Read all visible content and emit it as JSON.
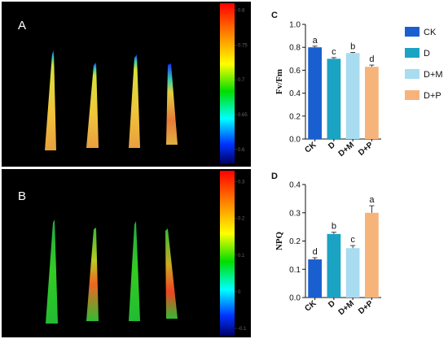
{
  "image_panels": [
    {
      "label": "A",
      "colorbar_ticks": [
        "0.8",
        "0.75",
        "0.7",
        "0.65",
        "0.6"
      ],
      "colorbar_min": 0.58,
      "colorbar_max": 0.81
    },
    {
      "label": "B",
      "colorbar_ticks": [
        "0.3",
        "0.2",
        "0.1",
        "0",
        "-0.1"
      ],
      "colorbar_min": -0.12,
      "colorbar_max": 0.33
    }
  ],
  "legend": {
    "entries": [
      {
        "name": "CK",
        "color": "#1a5fd0"
      },
      {
        "name": "D",
        "color": "#1ba3c4"
      },
      {
        "name": "D+M",
        "color": "#a8dcf0"
      },
      {
        "name": "D+P",
        "color": "#f7b47a"
      }
    ]
  },
  "chart_data": [
    {
      "type": "bar",
      "panel": "C",
      "categories": [
        "CK",
        "D",
        "D+M",
        "D+P"
      ],
      "values": [
        0.8,
        0.7,
        0.75,
        0.63
      ],
      "errors": [
        0.01,
        0.01,
        0.005,
        0.015
      ],
      "significance": [
        "a",
        "c",
        "b",
        "d"
      ],
      "ylabel": "Fv/Fm",
      "ylim": [
        0,
        1.0
      ],
      "yticks": [
        "0.0",
        "0.2",
        "0.4",
        "0.6",
        "0.8",
        "1.0"
      ],
      "yticks_values": [
        0,
        0.2,
        0.4,
        0.6,
        0.8,
        1.0
      ],
      "colors": [
        "#1a5fd0",
        "#1ba3c4",
        "#a8dcf0",
        "#f7b47a"
      ]
    },
    {
      "type": "bar",
      "panel": "D",
      "categories": [
        "CK",
        "D",
        "D+M",
        "D+P"
      ],
      "values": [
        0.135,
        0.225,
        0.175,
        0.3
      ],
      "errors": [
        0.006,
        0.006,
        0.009,
        0.025
      ],
      "significance": [
        "d",
        "b",
        "c",
        "a"
      ],
      "ylabel": "NPQ",
      "ylim": [
        0,
        0.4
      ],
      "yticks": [
        "0.0",
        "0.1",
        "0.2",
        "0.3",
        "0.4"
      ],
      "yticks_values": [
        0,
        0.1,
        0.2,
        0.3,
        0.4
      ],
      "colors": [
        "#1a5fd0",
        "#1ba3c4",
        "#a8dcf0",
        "#f7b47a"
      ]
    }
  ]
}
